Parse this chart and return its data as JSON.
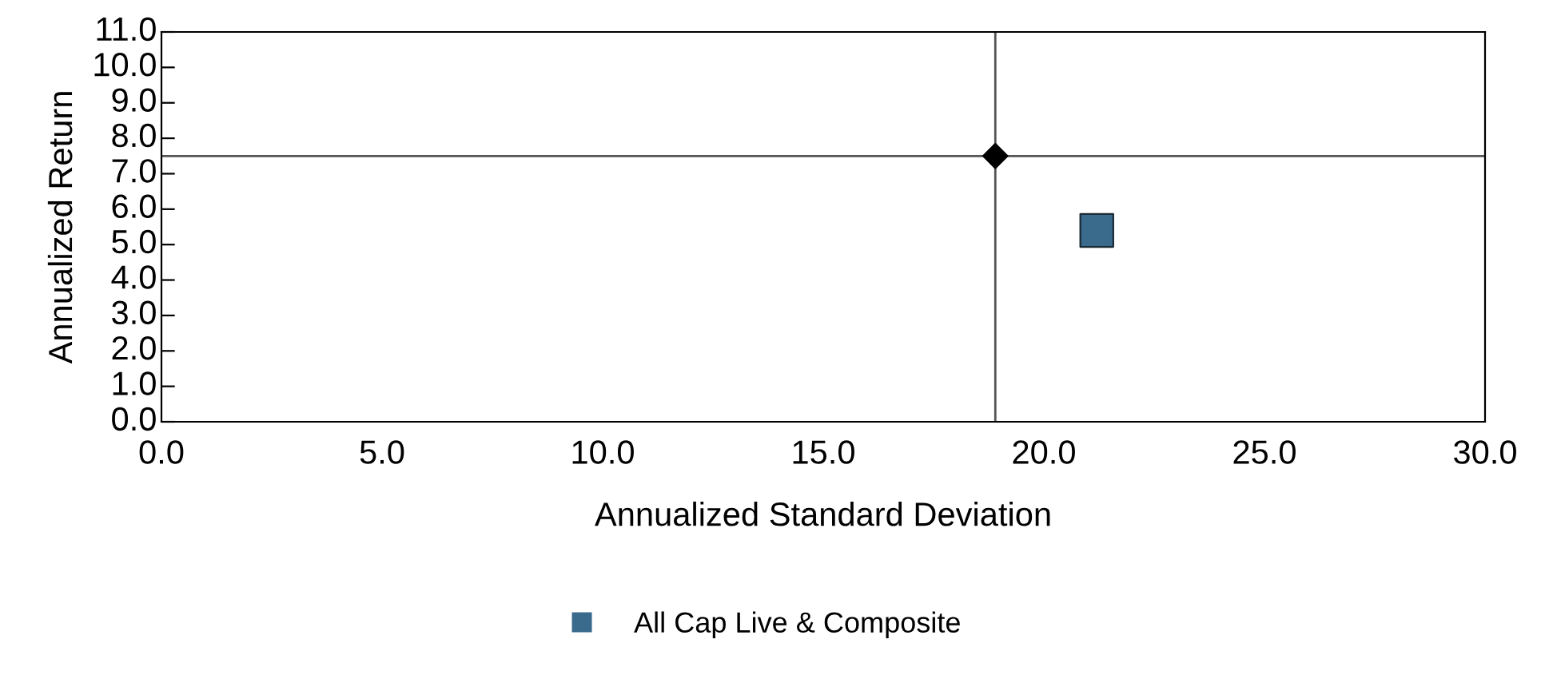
{
  "chart_data": {
    "type": "scatter",
    "xlabel": "Annualized Standard Deviation",
    "ylabel": "Annualized Return",
    "series": [
      {
        "name": "All Cap Live & Composite",
        "color": "#3a6b8c",
        "marker": "square",
        "x": [
          21.2
        ],
        "values": [
          5.4
        ]
      },
      {
        "color": "#000000",
        "marker": "diamond",
        "x": [
          18.9
        ],
        "values": [
          7.5
        ]
      }
    ],
    "xlim": [
      0,
      30
    ],
    "xticks": [
      {
        "value": 0,
        "label": "0.0"
      },
      {
        "value": 5,
        "label": "5.0"
      },
      {
        "value": 10,
        "label": "10.0"
      },
      {
        "value": 15,
        "label": "15.0"
      },
      {
        "value": 20,
        "label": "20.0"
      },
      {
        "value": 25,
        "label": "25.0"
      },
      {
        "value": 30,
        "label": "30.0"
      }
    ],
    "ylim": [
      0,
      11
    ],
    "yticks": [
      {
        "value": 0,
        "label": "0.0"
      },
      {
        "value": 1,
        "label": "1.0"
      },
      {
        "value": 2,
        "label": "2.0"
      },
      {
        "value": 3,
        "label": "3.0"
      },
      {
        "value": 4,
        "label": "4.0"
      },
      {
        "value": 5,
        "label": "5.0"
      },
      {
        "value": 6,
        "label": "6.0"
      },
      {
        "value": 7,
        "label": "7.0"
      },
      {
        "value": 8,
        "label": "8.0"
      },
      {
        "value": 9,
        "label": "9.0"
      },
      {
        "value": 10,
        "label": "10.0"
      },
      {
        "value": 11,
        "label": "11.0"
      }
    ],
    "ref_lines": [
      {
        "axis": "x",
        "value": 18.9,
        "color": "#555555"
      },
      {
        "axis": "y",
        "value": 7.5,
        "color": "#555555"
      }
    ],
    "grid": false,
    "legend": "bottom"
  }
}
